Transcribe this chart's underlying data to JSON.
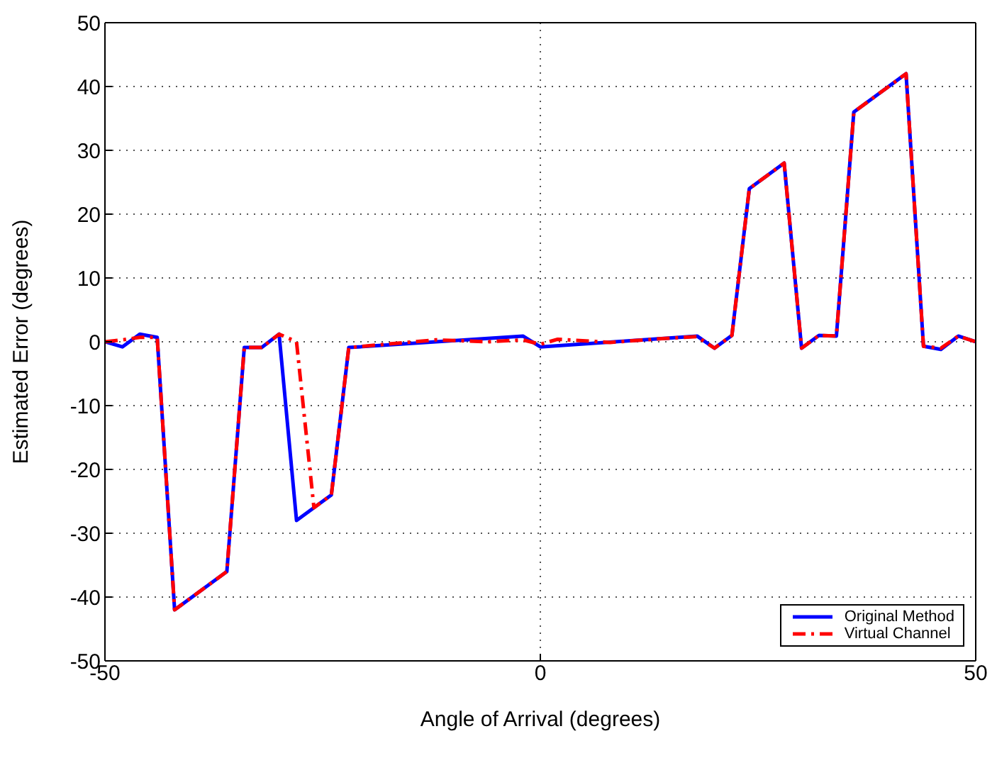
{
  "chart_data": {
    "type": "line",
    "xlabel": "Angle of Arrival (degrees)",
    "ylabel": "Estimated Error (degrees)",
    "xlim": [
      -50,
      50
    ],
    "xticks": [
      -50,
      0,
      50
    ],
    "ylim": [
      -50,
      50
    ],
    "yticks": [
      -50,
      -40,
      -30,
      -20,
      -10,
      0,
      10,
      20,
      30,
      40,
      50
    ],
    "grid": true,
    "legend": "bottom right",
    "marker": "none",
    "series": [
      {
        "name": "Original Method",
        "color": "#0000ff",
        "line_style": "solid",
        "x": [
          -50,
          -48,
          -46,
          -44,
          -42,
          -36,
          -34,
          -32,
          -30,
          -28,
          -24,
          -22,
          -2,
          0,
          18,
          20,
          22,
          24,
          28,
          30,
          32,
          34,
          36,
          42,
          44,
          46,
          48,
          50
        ],
        "values": [
          0,
          -0.8,
          1.2,
          0.7,
          -42,
          -36,
          -0.9,
          -0.9,
          1.2,
          -28,
          -24,
          -0.9,
          0.9,
          -0.8,
          0.9,
          -1,
          1,
          24,
          28,
          -1,
          1,
          0.9,
          36,
          42,
          -0.7,
          -1.2,
          0.9,
          0
        ]
      },
      {
        "name": "Virtual Channel",
        "color": "#ff0000",
        "line_style": "dashed",
        "x": [
          -50,
          -48,
          -46,
          -44,
          -42,
          -36,
          -34,
          -32,
          -30,
          -28,
          -26,
          -24,
          -22,
          -12,
          -6,
          -2,
          0,
          2,
          8,
          14,
          18,
          20,
          22,
          24,
          28,
          30,
          32,
          34,
          36,
          42,
          44,
          46,
          48,
          50
        ],
        "values": [
          0,
          0.3,
          0.7,
          0.7,
          -42,
          -36,
          -0.9,
          -0.9,
          1.2,
          0,
          -26,
          -24,
          -0.9,
          0.3,
          0,
          0.3,
          -0.4,
          0.4,
          -0.1,
          0.5,
          0.8,
          -1,
          1,
          24,
          28,
          -1,
          1,
          0.9,
          36,
          42,
          -0.7,
          -1,
          0.9,
          0
        ]
      }
    ]
  }
}
